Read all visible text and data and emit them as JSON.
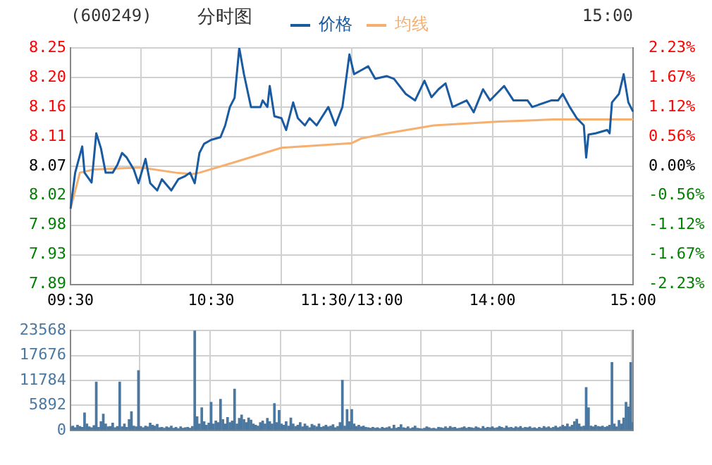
{
  "chart_data": [
    {
      "type": "line",
      "title": "分时图",
      "annotations": [
        "(600249)",
        "15:00"
      ],
      "legend": "top",
      "grid": true,
      "categories": [
        "09:30",
        null,
        null,
        null,
        null,
        null,
        null,
        null,
        null,
        null,
        null,
        null,
        null,
        null,
        null,
        null,
        null,
        null,
        null,
        null,
        null,
        null,
        null,
        null,
        null,
        null,
        null,
        null,
        null,
        null,
        null,
        null,
        null,
        null,
        null,
        null,
        null,
        null,
        null,
        null,
        null,
        null,
        null,
        null,
        null,
        null,
        null,
        null,
        null,
        null,
        null,
        null,
        null,
        null,
        null,
        null,
        null,
        null,
        null,
        null,
        "10:30",
        null,
        null,
        null,
        null,
        null,
        null,
        null,
        null,
        null,
        null,
        null,
        null,
        null,
        null,
        null,
        null,
        null,
        null,
        null,
        null,
        null,
        null,
        null,
        null,
        null,
        null,
        null,
        null,
        null,
        null,
        null,
        null,
        null,
        null,
        null,
        null,
        null,
        null,
        null,
        null,
        null,
        null,
        null,
        null,
        null,
        null,
        null,
        null,
        null,
        null,
        null,
        null,
        null,
        null,
        null,
        null,
        null,
        null,
        null,
        "11:30/13:00",
        null,
        null,
        null,
        null,
        null,
        null,
        null,
        null,
        null,
        null,
        null,
        null,
        null,
        null,
        null,
        null,
        null,
        null,
        null,
        null,
        null,
        null,
        null,
        null,
        null,
        null,
        null,
        null,
        null,
        null,
        null,
        null,
        null,
        null,
        null,
        null,
        null,
        null,
        null,
        null,
        null,
        null,
        null,
        null,
        null,
        null,
        null,
        null,
        null,
        null,
        null,
        null,
        null,
        null,
        null,
        null,
        null,
        null,
        null,
        "14:00",
        null,
        null,
        null,
        null,
        null,
        null,
        null,
        null,
        null,
        null,
        null,
        null,
        null,
        null,
        null,
        null,
        null,
        null,
        null,
        null,
        null,
        null,
        null,
        null,
        null,
        null,
        null,
        null,
        null,
        null,
        null,
        null,
        null,
        null,
        null,
        null,
        null,
        null,
        null,
        null,
        null,
        null,
        null,
        null,
        null,
        null,
        null,
        null,
        null,
        null,
        null,
        null,
        null,
        null,
        null,
        null,
        null,
        null,
        null,
        "15:00"
      ],
      "ylim": [
        7.89,
        8.25
      ],
      "yticks": [
        {
          "value": 7.89,
          "label": "7.89"
        },
        {
          "value": 7.935,
          "label": "7.93"
        },
        {
          "value": 7.98,
          "label": "7.98"
        },
        {
          "value": 8.025,
          "label": "8.02"
        },
        {
          "value": 8.07,
          "label": "8.07"
        },
        {
          "value": 8.115,
          "label": "8.11"
        },
        {
          "value": 8.16,
          "label": "8.16"
        },
        {
          "value": 8.205,
          "label": "8.20"
        },
        {
          "value": 8.25,
          "label": "8.25"
        }
      ],
      "y2lim": [
        -2.23,
        2.23
      ],
      "y2ticks": [
        {
          "value": -2.23,
          "label": "-2.23%"
        },
        {
          "value": -1.6725,
          "label": "-1.67%"
        },
        {
          "value": -1.115,
          "label": "-1.12%"
        },
        {
          "value": -0.5575,
          "label": "-0.56%"
        },
        {
          "value": 0,
          "label": "0.00%"
        },
        {
          "value": 0.5575,
          "label": "0.56%"
        },
        {
          "value": 1.115,
          "label": "1.12%"
        },
        {
          "value": 1.6725,
          "label": "1.67%"
        },
        {
          "value": 2.23,
          "label": "2.23%"
        }
      ],
      "series": [
        {
          "name": "价格",
          "color": "#1a5aa0",
          "values": [
            8.005,
            null,
            8.06,
            null,
            null,
            8.1,
            8.06,
            null,
            null,
            8.045,
            null,
            8.12,
            null,
            8.097,
            null,
            8.06,
            null,
            null,
            8.06,
            null,
            8.072,
            null,
            8.09,
            null,
            8.083,
            null,
            null,
            8.065,
            null,
            8.044,
            null,
            null,
            8.081,
            null,
            8.044,
            null,
            null,
            8.033,
            null,
            8.05,
            null,
            null,
            null,
            8.033,
            null,
            null,
            8.05,
            null,
            null,
            8.055,
            null,
            8.06,
            null,
            8.044,
            null,
            8.09,
            null,
            8.104,
            null,
            null,
            8.11,
            null,
            null,
            null,
            8.114,
            null,
            8.132,
            null,
            8.16,
            null,
            8.174,
            null,
            8.25,
            null,
            8.21,
            null,
            null,
            8.16,
            null,
            null,
            null,
            8.16,
            8.17,
            null,
            8.16,
            8.192,
            null,
            8.146,
            null,
            null,
            8.143,
            null,
            8.125,
            null,
            null,
            8.167,
            null,
            8.143,
            null,
            null,
            8.132,
            null,
            8.143,
            null,
            null,
            8.132,
            null,
            null,
            null,
            null,
            8.16,
            null,
            null,
            8.132,
            null,
            null,
            8.16,
            null,
            null,
            8.24,
            null,
            8.21,
            null,
            null,
            null,
            null,
            null,
            8.222,
            null,
            null,
            8.203,
            null,
            null,
            null,
            null,
            8.207,
            null,
            null,
            8.203,
            null,
            null,
            null,
            null,
            8.18,
            null,
            null,
            null,
            8.17,
            null,
            null,
            null,
            8.2,
            null,
            null,
            8.175,
            null,
            null,
            8.187,
            null,
            null,
            8.196,
            null,
            null,
            8.16,
            null,
            null,
            null,
            null,
            null,
            8.17,
            null,
            null,
            8.152,
            null,
            null,
            null,
            8.187,
            null,
            null,
            8.17,
            null,
            null,
            null,
            null,
            null,
            8.192,
            null,
            null,
            null,
            8.17,
            null,
            null,
            null,
            null,
            null,
            8.17,
            null,
            8.16,
            null,
            null,
            null,
            null,
            null,
            null,
            null,
            8.17,
            null,
            null,
            8.17,
            null,
            8.18,
            null,
            null,
            8.16,
            null,
            null,
            8.143,
            null,
            null,
            8.132,
            8.083,
            8.118,
            null,
            null,
            8.12,
            null,
            null,
            null,
            null,
            8.125,
            8.12,
            8.167,
            null,
            null,
            8.18,
            null,
            8.21,
            null,
            8.167,
            null,
            8.153
          ]
        },
        {
          "name": "均线",
          "color": "#f5b070",
          "values": [
            8.005,
            null,
            null,
            null,
            8.06,
            null,
            null,
            null,
            null,
            null,
            8.065,
            null,
            null,
            null,
            null,
            null,
            null,
            null,
            null,
            null,
            null,
            null,
            null,
            null,
            null,
            null,
            null,
            null,
            null,
            null,
            8.068,
            null,
            null,
            null,
            null,
            null,
            null,
            null,
            null,
            null,
            null,
            null,
            null,
            null,
            null,
            8.06,
            null,
            null,
            null,
            null,
            null,
            null,
            8.058,
            null,
            null,
            8.06,
            null,
            null,
            null,
            null,
            null,
            null,
            null,
            null,
            null,
            null,
            null,
            null,
            null,
            null,
            8.076,
            null,
            null,
            null,
            null,
            null,
            null,
            null,
            null,
            null,
            null,
            null,
            null,
            null,
            null,
            null,
            null,
            null,
            null,
            null,
            8.098,
            null,
            null,
            null,
            null,
            null,
            null,
            null,
            null,
            null,
            null,
            null,
            null,
            null,
            null,
            null,
            null,
            null,
            null,
            null,
            null,
            null,
            null,
            null,
            null,
            null,
            null,
            null,
            null,
            null,
            8.105,
            null,
            null,
            null,
            8.112,
            null,
            null,
            null,
            null,
            null,
            null,
            null,
            null,
            null,
            null,
            8.12,
            null,
            null,
            null,
            null,
            null,
            null,
            null,
            null,
            null,
            null,
            null,
            null,
            null,
            null,
            null,
            null,
            null,
            null,
            null,
            8.132,
            null,
            null,
            null,
            null,
            null,
            null,
            null,
            null,
            null,
            null,
            null,
            null,
            null,
            null,
            null,
            null,
            null,
            null,
            null,
            null,
            null,
            null,
            null,
            null,
            null,
            null,
            null,
            8.138,
            null,
            null,
            null,
            null,
            null,
            null,
            null,
            null,
            null,
            null,
            null,
            null,
            null,
            null,
            null,
            null,
            null,
            null,
            null,
            null,
            null,
            null,
            8.141,
            null,
            null,
            null,
            null,
            null,
            null,
            null,
            null,
            null,
            null,
            null,
            null,
            null,
            null,
            null,
            null,
            null,
            null,
            null,
            null,
            null,
            null,
            null,
            null,
            null,
            null,
            null,
            null,
            null,
            null,
            null,
            null,
            null,
            8.141
          ]
        }
      ]
    },
    {
      "type": "bar",
      "grid": true,
      "tick_labels": "y",
      "color": "#4a78a0",
      "categories": [
        null,
        null,
        null,
        null,
        null,
        null,
        null,
        null,
        null,
        null,
        null,
        null,
        null,
        null,
        null,
        null,
        null,
        null,
        null,
        null,
        null,
        null,
        null,
        null,
        null,
        null,
        null,
        null,
        null,
        null,
        null,
        null,
        null,
        null,
        null,
        null,
        null,
        null,
        null,
        null,
        null,
        null,
        null,
        null,
        null,
        null,
        null,
        null,
        null,
        null,
        null,
        null,
        null,
        null,
        null,
        null,
        null,
        null,
        null,
        null,
        null,
        null,
        null,
        null,
        null,
        null,
        null,
        null,
        null,
        null,
        null,
        null,
        null,
        null,
        null,
        null,
        null,
        null,
        null,
        null,
        null,
        null,
        null,
        null,
        null,
        null,
        null,
        null,
        null,
        null,
        null,
        null,
        null,
        null,
        null,
        null,
        null,
        null,
        null,
        null,
        null,
        null,
        null,
        null,
        null,
        null,
        null,
        null,
        null,
        null,
        null,
        null,
        null,
        null,
        null,
        null,
        null,
        null,
        null,
        null,
        null,
        null,
        null,
        null,
        null,
        null,
        null,
        null,
        null,
        null,
        null,
        null,
        null,
        null,
        null,
        null,
        null,
        null,
        null,
        null,
        null,
        null,
        null,
        null,
        null,
        null,
        null,
        null,
        null,
        null,
        null,
        null,
        null,
        null,
        null,
        null,
        null,
        null,
        null,
        null,
        null,
        null,
        null,
        null,
        null,
        null,
        null,
        null,
        null,
        null,
        null,
        null,
        null,
        null,
        null,
        null,
        null,
        null,
        null,
        null,
        null,
        null,
        null,
        null,
        null,
        null,
        null,
        null,
        null,
        null,
        null,
        null,
        null,
        null,
        null,
        null,
        null,
        null,
        null,
        null,
        null,
        null,
        null,
        null,
        null,
        null,
        null,
        null,
        null,
        null,
        null,
        null,
        null,
        null,
        null,
        null,
        null,
        null,
        null,
        null,
        null,
        null,
        null,
        null,
        null,
        null,
        null,
        null,
        null,
        null,
        null,
        null,
        null,
        null,
        null,
        null,
        null,
        null,
        null,
        null,
        null
      ],
      "ylim": [
        0,
        23568
      ],
      "yticks": [
        0,
        5892,
        11784,
        17676,
        23568
      ],
      "values": [
        800,
        1000,
        600,
        1200,
        900,
        700,
        4100,
        1500,
        800,
        600,
        1100,
        11400,
        700,
        2000,
        3800,
        1500,
        800,
        900,
        1700,
        600,
        900,
        11400,
        800,
        1500,
        700,
        2500,
        4400,
        1000,
        800,
        14100,
        900,
        600,
        1000,
        800,
        1700,
        1200,
        1000,
        1400,
        600,
        700,
        500,
        800,
        600,
        1000,
        500,
        700,
        400,
        800,
        500,
        600,
        700,
        500,
        900,
        23500,
        3200,
        1500,
        5300,
        2000,
        1200,
        1700,
        6600,
        1500,
        2200,
        1800,
        7300,
        2500,
        1500,
        3000,
        1800,
        2200,
        9700,
        1500,
        2800,
        3600,
        2500,
        1800,
        2900,
        2400,
        1500,
        1200,
        1000,
        1800,
        2200,
        1500,
        2800,
        2000,
        1500,
        6300,
        1800,
        4700,
        1500,
        1200,
        2000,
        1000,
        2900,
        1500,
        900,
        1200,
        1800,
        800,
        1500,
        1000,
        600,
        1400,
        1100,
        800,
        1500,
        700,
        900,
        1200,
        800,
        1000,
        1300,
        600,
        900,
        1800,
        11800,
        1000,
        4900,
        2000,
        4900,
        1500,
        900,
        1200,
        800,
        1000,
        700,
        600,
        500,
        700,
        500,
        600,
        400,
        700,
        500,
        600,
        800,
        400,
        1200,
        500,
        700,
        1300,
        600,
        500,
        800,
        400,
        600,
        1000,
        500,
        400,
        300,
        500,
        800,
        600,
        400,
        500,
        300,
        700,
        600,
        500,
        800,
        500,
        900,
        600,
        700,
        400,
        500,
        600,
        800,
        500,
        700,
        600,
        500,
        800,
        600,
        400,
        900,
        500,
        700,
        600,
        800,
        500,
        600,
        900,
        700,
        500,
        1000,
        600,
        700,
        500,
        800,
        600,
        900,
        500,
        700,
        600,
        800,
        500,
        600,
        400,
        700,
        500,
        900,
        600,
        800,
        500,
        700,
        1000,
        600,
        800,
        1200,
        900,
        1500,
        800,
        1200,
        2000,
        2600,
        1500,
        800,
        1000,
        10100,
        5300,
        1000,
        800,
        1200,
        900,
        800,
        1000,
        700,
        900,
        1200,
        16000,
        1500,
        800,
        2300,
        1500,
        2900,
        6600,
        5500,
        16000,
        1800
      ]
    }
  ]
}
